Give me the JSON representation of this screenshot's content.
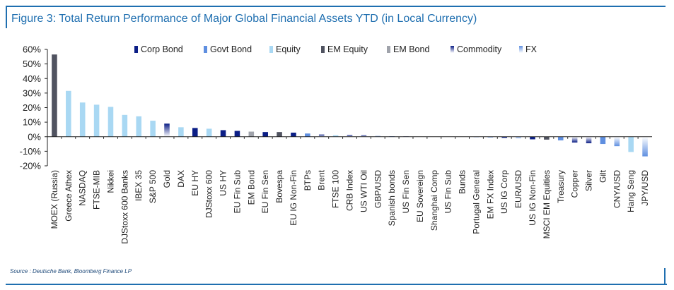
{
  "title": "Figure 3: Total Return Performance of Major Global Financial Assets YTD (in Local Currency)",
  "source": "Source : Deutsche Bank, Bloomberg Finance LP",
  "colors": {
    "Corp Bond": "#0b1e86",
    "Govt Bond": "#5f8fe0",
    "Equity": "#a9d8f3",
    "EM Equity": "#505360",
    "EM Bond": "#a0a3ab",
    "Commodity": [
      "#0b1e86",
      "#ffffff"
    ],
    "FX": [
      "#5f8fe0",
      "#ffffff"
    ]
  },
  "chart_data": {
    "type": "bar",
    "title": "Figure 3: Total Return Performance of Major Global Financial Assets YTD (in Local Currency)",
    "xlabel": "",
    "ylabel": "",
    "ylim": [
      -20,
      60
    ],
    "yticks": [
      -20,
      -10,
      0,
      10,
      20,
      30,
      40,
      50,
      60
    ],
    "ytick_labels": [
      "-20%",
      "-10%",
      "0%",
      "10%",
      "20%",
      "30%",
      "40%",
      "50%",
      "60%"
    ],
    "grid": false,
    "legend": {
      "position": "top",
      "entries": [
        "Corp Bond",
        "Govt Bond",
        "Equity",
        "EM Equity",
        "EM Bond",
        "Commodity",
        "FX"
      ]
    },
    "categories": [
      "MOEX (Russia)",
      "Greece Athex",
      "NASDAQ",
      "FTSE-MIB",
      "Nikkei",
      "DJStoxx 600 Banks",
      "IBEX 35",
      "S&P 500",
      "Gold",
      "DAX",
      "EU HY",
      "DJStoxx 600",
      "US HY",
      "EU Fin Sub",
      "EM Bond",
      "EU Fin Sen",
      "Bovespa",
      "EU IG Non-Fin",
      "BTPs",
      "Brent",
      "FTSE 100",
      "CRB Index",
      "US WTI Oil",
      "GBP/USD",
      "Spanish bonds",
      "US Fin Sen",
      "EU Sovereign",
      "Shanghai Comp",
      "US Fin Sub",
      "Bunds",
      "Portugal General",
      "EM FX Index",
      "US IG Corp",
      "EUR/USD",
      "US IG Non-Fin",
      "MSCI EM Equities",
      "Treasury",
      "Copper",
      "Silver",
      "Gilt",
      "CNY/USD",
      "Hang Seng",
      "JPY/USD"
    ],
    "values": [
      56.5,
      31.5,
      23.5,
      22.0,
      20.5,
      15.0,
      14.0,
      11.0,
      9.0,
      6.5,
      6.0,
      5.5,
      4.5,
      4.0,
      3.5,
      3.2,
      3.2,
      2.8,
      2.2,
      1.5,
      1.0,
      1.2,
      1.0,
      0.5,
      0.3,
      0.2,
      0.1,
      0.1,
      0.1,
      0.0,
      -0.3,
      -0.6,
      -0.8,
      -1.0,
      -1.8,
      -2.0,
      -2.5,
      -4.0,
      -4.5,
      -5.0,
      -6.5,
      -10.5,
      -13.5
    ],
    "asset_class": [
      "EM Equity",
      "Equity",
      "Equity",
      "Equity",
      "Equity",
      "Equity",
      "Equity",
      "Equity",
      "Commodity",
      "Equity",
      "Corp Bond",
      "Equity",
      "Corp Bond",
      "Corp Bond",
      "EM Bond",
      "Corp Bond",
      "EM Equity",
      "Corp Bond",
      "Govt Bond",
      "Commodity",
      "Equity",
      "Commodity",
      "Commodity",
      "FX",
      "Govt Bond",
      "Corp Bond",
      "Govt Bond",
      "EM Equity",
      "Corp Bond",
      "Govt Bond",
      "Govt Bond",
      "FX",
      "Corp Bond",
      "FX",
      "Corp Bond",
      "EM Equity",
      "Govt Bond",
      "Commodity",
      "Commodity",
      "Govt Bond",
      "FX",
      "Equity",
      "FX"
    ]
  }
}
